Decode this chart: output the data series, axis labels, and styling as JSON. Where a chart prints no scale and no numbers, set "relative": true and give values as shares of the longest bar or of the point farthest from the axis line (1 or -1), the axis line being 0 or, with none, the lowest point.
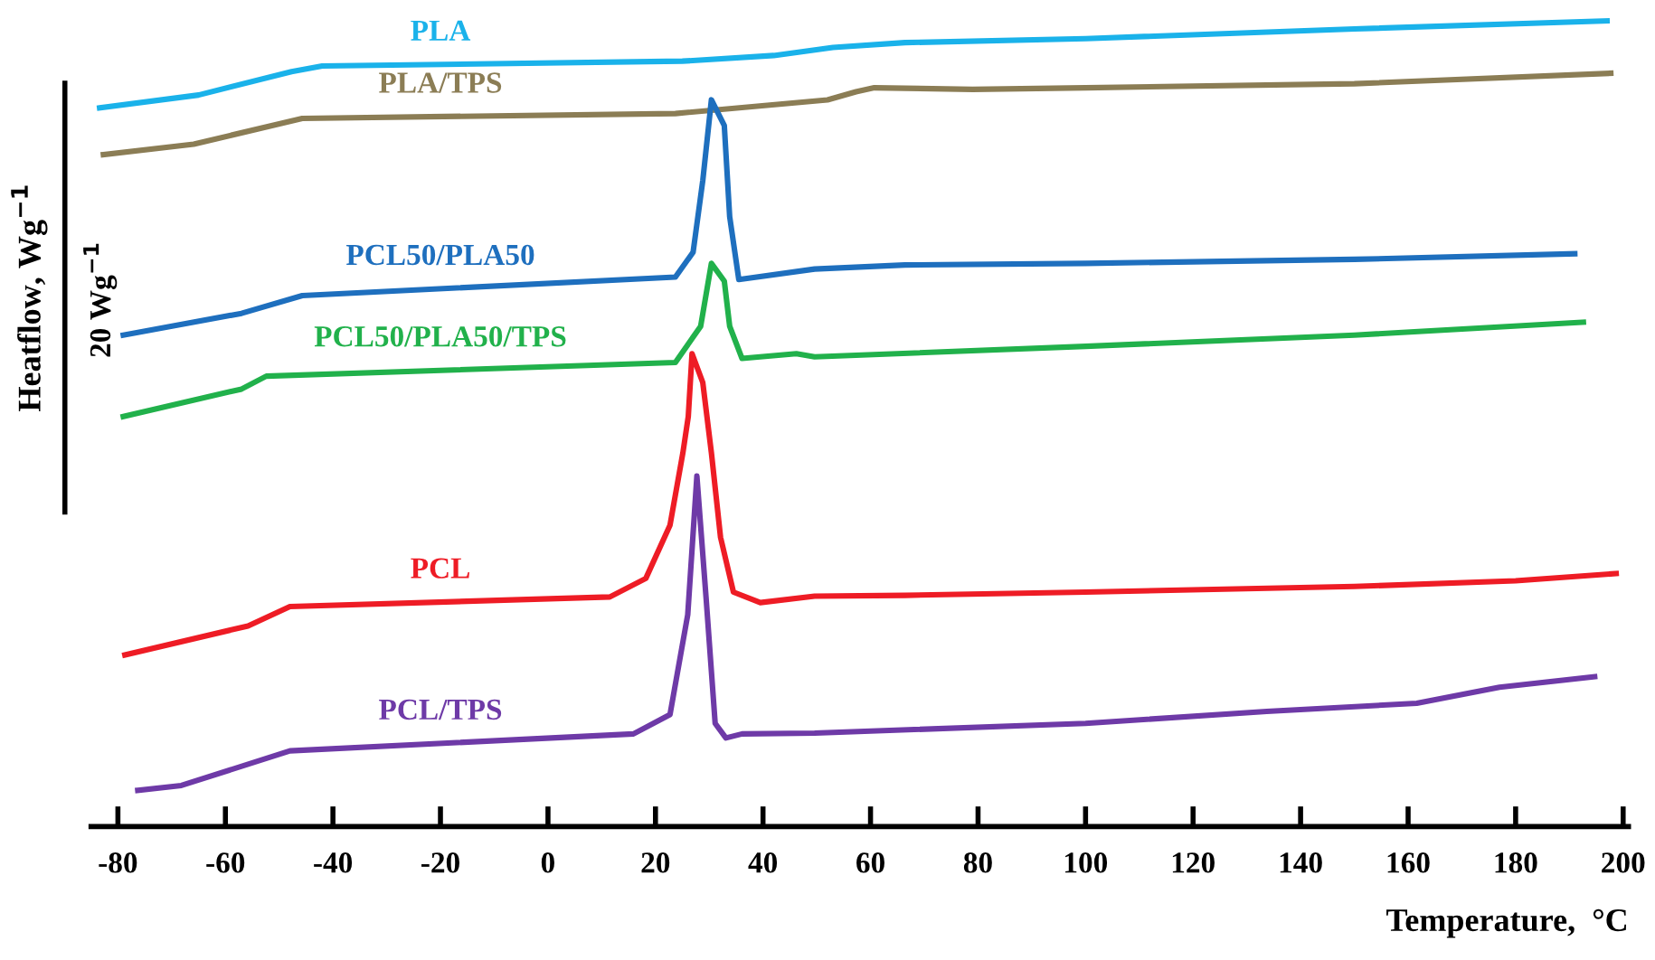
{
  "chart_data": {
    "type": "line",
    "relative": true,
    "xlabel": "Temperature,  °C",
    "ylabel": "Heatflow, Wg$^{−1}$",
    "annotations": [
      "20 Wg$^{−1}$"
    ],
    "xlim": [
      -85,
      201
    ],
    "xticks": [
      -80,
      -60,
      -40,
      -20,
      0,
      20,
      40,
      60,
      80,
      100,
      120,
      140,
      160,
      180,
      200
    ],
    "grid": false,
    "legend": false,
    "marker": "none",
    "line_style": "solid",
    "series": [
      {
        "name": "PLA",
        "color": "#1ab2ea",
        "x": [
          -83.4,
          -65,
          -47.7,
          -42,
          25,
          42,
          53,
          66.4,
          100,
          150,
          197
        ],
        "values": [
          0.892,
          0.908,
          0.937,
          0.944,
          0.95,
          0.957,
          0.967,
          0.973,
          0.978,
          0.99,
          1.0
        ]
      },
      {
        "name": "PLA/TPS",
        "color": "#8b7d55",
        "x": [
          -82.7,
          -65.9,
          -45.7,
          23.7,
          52,
          57.3,
          60.7,
          79,
          100,
          150,
          197.7
        ],
        "values": [
          0.834,
          0.847,
          0.879,
          0.885,
          0.902,
          0.912,
          0.917,
          0.915,
          0.917,
          0.922,
          0.935
        ]
      },
      {
        "name": "PCL50/PLA50",
        "color": "#1e6fbe",
        "x": [
          -79,
          -57,
          -45.7,
          23.7,
          27,
          28.8,
          30.4,
          32.8,
          33.8,
          35.5,
          49.6,
          66.4,
          100,
          150,
          191
        ],
        "values": [
          0.61,
          0.637,
          0.659,
          0.682,
          0.713,
          0.802,
          0.902,
          0.87,
          0.757,
          0.679,
          0.692,
          0.697,
          0.699,
          0.704,
          0.711
        ]
      },
      {
        "name": "PCL50/PLA50/TPS",
        "color": "#21b14b",
        "x": [
          -79,
          -57,
          -52.4,
          23.7,
          28.4,
          30.4,
          32.8,
          33.8,
          36.1,
          46.2,
          49.6,
          100,
          150,
          192.6
        ],
        "values": [
          0.509,
          0.543,
          0.559,
          0.576,
          0.621,
          0.699,
          0.677,
          0.621,
          0.581,
          0.587,
          0.583,
          0.596,
          0.61,
          0.626
        ]
      },
      {
        "name": "PCL",
        "color": "#ee1c25",
        "x": [
          -78.7,
          -55.8,
          -48,
          11.5,
          18.2,
          22.7,
          25.1,
          26.1,
          26.8,
          28.8,
          30.4,
          32.1,
          34.5,
          39.5,
          49.6,
          66.4,
          100,
          150,
          180,
          198.7
        ],
        "values": [
          0.213,
          0.249,
          0.273,
          0.285,
          0.308,
          0.374,
          0.464,
          0.509,
          0.587,
          0.551,
          0.464,
          0.359,
          0.291,
          0.278,
          0.286,
          0.287,
          0.291,
          0.298,
          0.305,
          0.314
        ]
      },
      {
        "name": "PCL/TPS",
        "color": "#6e3aa7",
        "x": [
          -76.3,
          -68.2,
          -48,
          15.9,
          22.7,
          26,
          27.7,
          29.4,
          31.1,
          33.1,
          36.1,
          49.6,
          100,
          133.7,
          161.6,
          177,
          194.7
        ],
        "values": [
          0.045,
          0.051,
          0.094,
          0.115,
          0.139,
          0.263,
          0.435,
          0.285,
          0.128,
          0.11,
          0.115,
          0.116,
          0.128,
          0.143,
          0.153,
          0.173,
          0.186
        ]
      }
    ]
  }
}
